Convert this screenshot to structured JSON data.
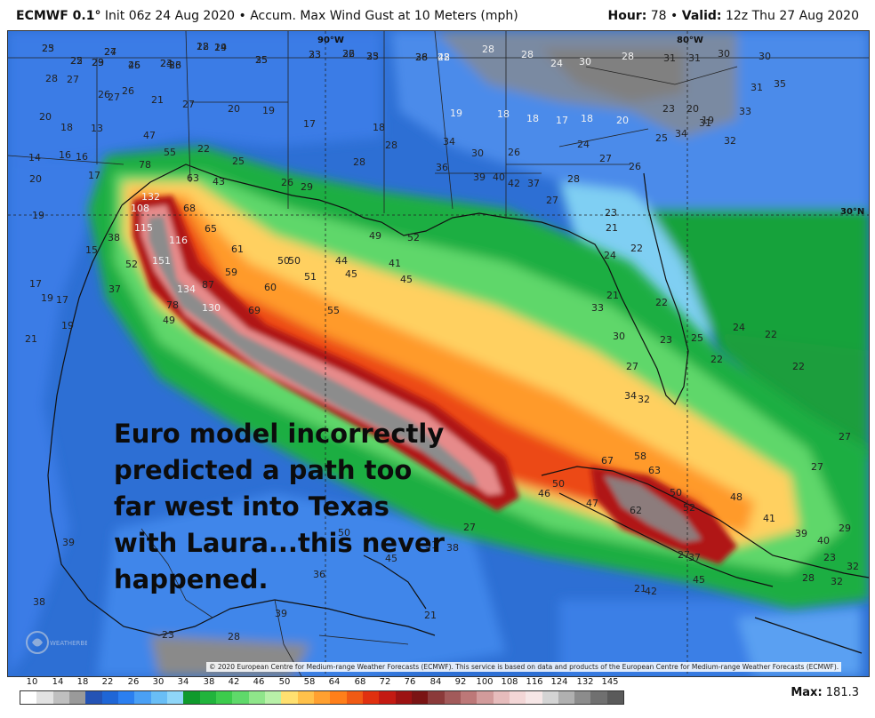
{
  "header": {
    "model": "ECMWF 0.1°",
    "init": "Init 06z 24 Aug 2020",
    "separator": " • ",
    "product": "Accum. Max Wind Gust at 10 Meters (mph)",
    "hour_label": "Hour:",
    "hour_value": "78",
    "valid_label": "Valid:",
    "valid_value": "12z Thu 27 Aug 2020"
  },
  "map": {
    "grid_labels": [
      "90°W",
      "80°W",
      "30°N"
    ],
    "annotation": "Euro model incorrectly predicted a path too far west into Texas with Laura...this never happened.",
    "copyright": "© 2020 European Centre for Medium-range Weather Forecasts (ECMWF). This service is based on data and products of the European Centre for Medium-range Weather Forecasts (ECMWF).",
    "watermark": "WEATHERBELL",
    "storm_values": [
      {
        "label": "132",
        "light": true
      },
      {
        "label": "108",
        "light": true
      },
      {
        "label": "115",
        "light": true
      },
      {
        "label": "151",
        "light": true
      },
      {
        "label": "116",
        "light": true
      },
      {
        "label": "134",
        "light": true
      },
      {
        "label": "130",
        "light": true
      },
      {
        "label": "78",
        "light": false
      },
      {
        "label": "49",
        "light": false
      },
      {
        "label": "87",
        "light": false
      },
      {
        "label": "69",
        "light": false
      },
      {
        "label": "60",
        "light": false
      },
      {
        "label": "61",
        "light": false
      },
      {
        "label": "59",
        "light": false
      },
      {
        "label": "65",
        "light": false
      },
      {
        "label": "68",
        "light": false
      },
      {
        "label": "63",
        "light": false
      },
      {
        "label": "55",
        "light": false
      },
      {
        "label": "78",
        "light": false
      },
      {
        "label": "47",
        "light": false
      },
      {
        "label": "43",
        "light": false
      },
      {
        "label": "52",
        "light": false
      },
      {
        "label": "37",
        "light": false
      },
      {
        "label": "38",
        "light": false
      },
      {
        "label": "50",
        "light": false
      },
      {
        "label": "50",
        "light": false
      },
      {
        "label": "51",
        "light": false
      },
      {
        "label": "55",
        "light": false
      },
      {
        "label": "44",
        "light": false
      },
      {
        "label": "45",
        "light": false
      },
      {
        "label": "41",
        "light": false
      },
      {
        "label": "45",
        "light": false
      },
      {
        "label": "49",
        "light": false
      },
      {
        "label": "52",
        "light": false
      },
      {
        "label": "50",
        "light": false
      },
      {
        "label": "67",
        "light": false
      },
      {
        "label": "63",
        "light": false
      },
      {
        "label": "58",
        "light": false
      },
      {
        "label": "50",
        "light": false
      },
      {
        "label": "62",
        "light": false
      },
      {
        "label": "52",
        "light": false
      },
      {
        "label": "47",
        "light": false
      },
      {
        "label": "46",
        "light": false
      },
      {
        "label": "48",
        "light": false
      },
      {
        "label": "41",
        "light": false
      },
      {
        "label": "39",
        "light": false
      },
      {
        "label": "40",
        "light": false
      },
      {
        "label": "45",
        "light": false
      }
    ],
    "other_values": [
      "23",
      "24",
      "22",
      "24",
      "22",
      "23",
      "26",
      "24",
      "26",
      "25",
      "23",
      "22",
      "23",
      "26",
      "28",
      "28",
      "28",
      "24",
      "30",
      "28",
      "31",
      "31",
      "30",
      "30",
      "28",
      "27",
      "26",
      "26",
      "27",
      "21",
      "27",
      "20",
      "19",
      "17",
      "18",
      "19",
      "18",
      "18",
      "17",
      "18",
      "20",
      "23",
      "20",
      "19",
      "20",
      "18",
      "13",
      "14",
      "16",
      "16",
      "17",
      "20",
      "19",
      "15",
      "17",
      "19",
      "17",
      "21",
      "19",
      "22",
      "25",
      "26",
      "29",
      "28",
      "28",
      "34",
      "30",
      "26",
      "24",
      "27",
      "26",
      "25",
      "34",
      "31",
      "32",
      "33",
      "31",
      "35",
      "36",
      "39",
      "40",
      "42",
      "37",
      "27",
      "28",
      "23",
      "21",
      "22",
      "24",
      "21",
      "22",
      "23",
      "25",
      "22",
      "24",
      "22",
      "22",
      "27",
      "27",
      "29",
      "23",
      "32",
      "27",
      "30",
      "33",
      "32",
      "34",
      "37",
      "42",
      "38",
      "31",
      "39",
      "38",
      "36",
      "45",
      "50",
      "39",
      "28",
      "23",
      "21",
      "27",
      "28",
      "32",
      "21",
      "27",
      "25",
      "27",
      "18",
      "19",
      "25",
      "29",
      "45",
      "23",
      "33",
      "35",
      "33",
      "36",
      "35",
      "38",
      "42"
    ]
  },
  "colorbar": {
    "ticks": [
      "10",
      "14",
      "18",
      "22",
      "26",
      "30",
      "34",
      "38",
      "42",
      "46",
      "50",
      "58",
      "64",
      "68",
      "72",
      "76",
      "84",
      "92",
      "100",
      "108",
      "116",
      "124",
      "132",
      "145"
    ],
    "colors": [
      "#ffffff",
      "#e2e2e2",
      "#bfbfbf",
      "#9a9a9a",
      "#2453b5",
      "#1f66d6",
      "#2b7ff0",
      "#4aa0f5",
      "#69bef6",
      "#8fd6f8",
      "#0f9a2c",
      "#21b43c",
      "#3ccb4c",
      "#5fd96a",
      "#8fe58a",
      "#b8f0a8",
      "#ffe070",
      "#ffc14a",
      "#ffa030",
      "#ff7f1a",
      "#f05a14",
      "#e0300f",
      "#c41a12",
      "#9c1212",
      "#7a1414",
      "#8b3a3a",
      "#a25a5a",
      "#bd7878",
      "#d29b9b",
      "#e6bcbc",
      "#f3d6d6",
      "#f6e6e6",
      "#d4d4d4",
      "#b0b0b0",
      "#8c8c8c",
      "#707070",
      "#5a5a5a"
    ],
    "max_label": "Max:",
    "max_value": "181.3"
  }
}
